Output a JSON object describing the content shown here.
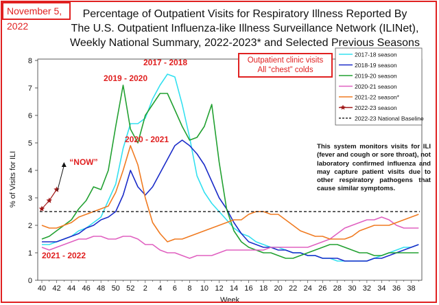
{
  "date_label": "November 5, 2022",
  "title_lines": [
    "Percentage of Outpatient Visits for Respiratory Illness Reported By",
    "The U.S. Outpatient Influenza-like Illness Surveillance Network (ILINet),",
    "Weekly National Summary, 2022-2023* and Selected Previous Seasons"
  ],
  "callout_lines": [
    "Outpatient clinic visits",
    "All “chest” colds"
  ],
  "note_text": "This system monitors visits for ILI (fever and cough or sore throat), not laboratory confirmed influenza and may capture patient visits due to other respiratory pathogens that cause similar symptoms.",
  "chart_data": {
    "type": "line",
    "title": "Percentage of Outpatient Visits for Respiratory Illness Reported By The U.S. Outpatient Influenza-like Illness Surveillance Network (ILINet), Weekly National Summary, 2022-2023* and Selected Previous Seasons",
    "xlabel": "Week",
    "ylabel": "% of Visits for ILI",
    "ylim": [
      0,
      8
    ],
    "yticks": [
      "0",
      "1",
      "2",
      "3",
      "4",
      "5",
      "6",
      "7",
      "8"
    ],
    "x_ticks": [
      "40",
      "42",
      "44",
      "46",
      "48",
      "50",
      "52",
      "2",
      "4",
      "6",
      "8",
      "10",
      "12",
      "14",
      "16",
      "18",
      "20",
      "22",
      "24",
      "26",
      "28",
      "30",
      "32",
      "34",
      "36",
      "38"
    ],
    "grid": false,
    "legend_position": "top-right",
    "series": [
      {
        "name": "2017-18 season",
        "color": "#33e0f0",
        "marker": "none",
        "values": [
          1.3,
          1.3,
          1.4,
          1.5,
          1.6,
          1.8,
          1.9,
          2.1,
          2.3,
          2.9,
          3.5,
          4.8,
          5.7,
          5.7,
          5.9,
          6.6,
          7.1,
          7.5,
          7.4,
          6.4,
          5.2,
          3.8,
          3.2,
          2.8,
          2.5,
          2.2,
          1.9,
          1.7,
          1.6,
          1.4,
          1.3,
          1.2,
          1.2,
          1.1,
          1.0,
          1.0,
          0.9,
          0.9,
          0.8,
          0.8,
          0.7,
          0.7,
          0.7,
          0.7,
          0.7,
          0.8,
          0.9,
          1.0,
          1.1,
          1.2,
          1.2,
          1.3
        ]
      },
      {
        "name": "2018-19 season",
        "color": "#1a2bc8",
        "marker": "none",
        "values": [
          1.4,
          1.4,
          1.4,
          1.5,
          1.6,
          1.7,
          1.9,
          2.0,
          2.2,
          2.3,
          2.5,
          3.1,
          4.0,
          3.4,
          3.1,
          3.4,
          3.9,
          4.4,
          4.9,
          5.1,
          4.9,
          4.6,
          4.2,
          3.6,
          3.0,
          2.6,
          2.1,
          1.7,
          1.4,
          1.3,
          1.2,
          1.2,
          1.1,
          1.1,
          1.0,
          1.0,
          0.9,
          0.9,
          0.8,
          0.8,
          0.8,
          0.7,
          0.7,
          0.7,
          0.7,
          0.8,
          0.8,
          0.9,
          1.0,
          1.1,
          1.2,
          1.3
        ]
      },
      {
        "name": "2019-20 season",
        "color": "#21a030",
        "marker": "none",
        "values": [
          1.5,
          1.6,
          1.8,
          2.0,
          2.2,
          2.6,
          2.9,
          3.4,
          3.3,
          4.0,
          5.6,
          7.1,
          5.5,
          5.0,
          6.0,
          6.4,
          6.8,
          6.8,
          6.2,
          5.6,
          5.1,
          5.2,
          5.6,
          6.4,
          4.3,
          2.6,
          1.8,
          1.4,
          1.2,
          1.1,
          1.0,
          1.0,
          0.9,
          0.8,
          0.8,
          0.9,
          1.0,
          1.1,
          1.2,
          1.3,
          1.3,
          1.2,
          1.1,
          1.0,
          1.0,
          0.9,
          0.9,
          1.0,
          1.0,
          1.0,
          1.0,
          1.0
        ]
      },
      {
        "name": "2020-21 season",
        "color": "#e060c0",
        "marker": "none",
        "values": [
          1.2,
          1.1,
          1.2,
          1.3,
          1.4,
          1.5,
          1.5,
          1.6,
          1.6,
          1.5,
          1.5,
          1.6,
          1.6,
          1.5,
          1.3,
          1.3,
          1.1,
          1.0,
          1.0,
          0.9,
          0.8,
          0.9,
          0.9,
          0.9,
          1.0,
          1.1,
          1.1,
          1.1,
          1.1,
          1.1,
          1.1,
          1.2,
          1.2,
          1.2,
          1.2,
          1.2,
          1.2,
          1.3,
          1.4,
          1.5,
          1.7,
          1.9,
          2.0,
          2.1,
          2.2,
          2.2,
          2.3,
          2.2,
          2.0,
          1.9,
          1.9,
          1.9
        ]
      },
      {
        "name": "2021-22 season*",
        "color": "#f07a20",
        "marker": "none",
        "values": [
          2.0,
          1.9,
          1.9,
          2.0,
          2.1,
          2.3,
          2.4,
          2.5,
          2.6,
          2.7,
          3.2,
          4.0,
          4.9,
          4.2,
          3.0,
          2.1,
          1.7,
          1.4,
          1.5,
          1.5,
          1.6,
          1.7,
          1.8,
          1.9,
          2.0,
          2.1,
          2.2,
          2.2,
          2.4,
          2.5,
          2.5,
          2.4,
          2.4,
          2.2,
          2.0,
          1.8,
          1.7,
          1.6,
          1.6,
          1.5,
          1.5,
          1.5,
          1.6,
          1.8,
          1.9,
          2.0,
          2.0,
          2.0,
          2.1,
          2.2,
          2.3,
          2.4
        ]
      },
      {
        "name": "2022-23 season",
        "color": "#a01818",
        "marker": "star",
        "values": [
          2.6,
          2.9,
          3.3
        ]
      },
      {
        "name": "2022-23 National Baseline",
        "color": "#000000",
        "marker": "none",
        "dashed": true,
        "values": [
          2.5
        ]
      }
    ],
    "annotations": [
      {
        "text": "2017 - 2018",
        "color": "#e02020"
      },
      {
        "text": "2019 - 2020",
        "color": "#e02020"
      },
      {
        "text": "2020 - 2021",
        "color": "#e02020"
      },
      {
        "text": "2021 - 2022",
        "color": "#e02020"
      },
      {
        "text": "“NOW”",
        "color": "#e02020",
        "arrow_to_value": 4.3
      }
    ]
  }
}
